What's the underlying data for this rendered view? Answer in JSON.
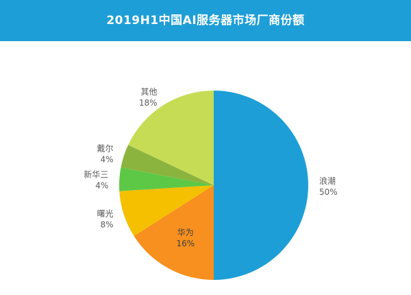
{
  "chart_data": {
    "type": "pie",
    "title": "2019H1中国AI服务器市场厂商份额",
    "slices": [
      {
        "label": "浪潮",
        "value": 50,
        "pct_label": "50%",
        "color": "#1e9ed6"
      },
      {
        "label": "华为",
        "value": 16,
        "pct_label": "16%",
        "color": "#f7901e"
      },
      {
        "label": "曙光",
        "value": 8,
        "pct_label": "8%",
        "color": "#f5c000"
      },
      {
        "label": "新华三",
        "value": 4,
        "pct_label": "4%",
        "color": "#5cc846"
      },
      {
        "label": "戴尔",
        "value": 4,
        "pct_label": "4%",
        "color": "#8bb43f"
      },
      {
        "label": "其他",
        "value": 18,
        "pct_label": "18%",
        "color": "#c7dc55"
      }
    ],
    "start": "12 o'clock",
    "direction": "clockwise"
  }
}
